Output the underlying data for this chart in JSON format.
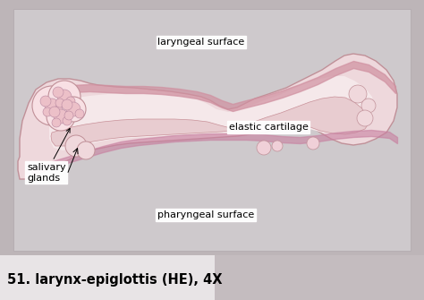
{
  "fig_bg": "#bdb5b8",
  "slide_bg": "#cec8cc",
  "tissue_pink_light": "#f0d8dc",
  "tissue_pink_mid": "#e8c0c8",
  "tissue_pink_dark": "#d4909c",
  "tissue_pink_border": "#c07880",
  "cartilage_light": "#f0e0e4",
  "slide_inner_bg": "#cfc8cc",
  "title": "51. larynx-epiglottis (HE), 4X",
  "title_fontsize": 10.5,
  "bottom_bar_color": "#c0b8bc",
  "label_laryngeal": "laryngeal surface",
  "label_elastic": "elastic cartilage",
  "label_salivary": "salivary\nglands",
  "label_pharyngeal": "pharyngeal surface",
  "label_fontsize": 8,
  "label_box_color": "white",
  "label_text_color": "black",
  "arrow_color": "black",
  "arrow_lw": 0.7
}
